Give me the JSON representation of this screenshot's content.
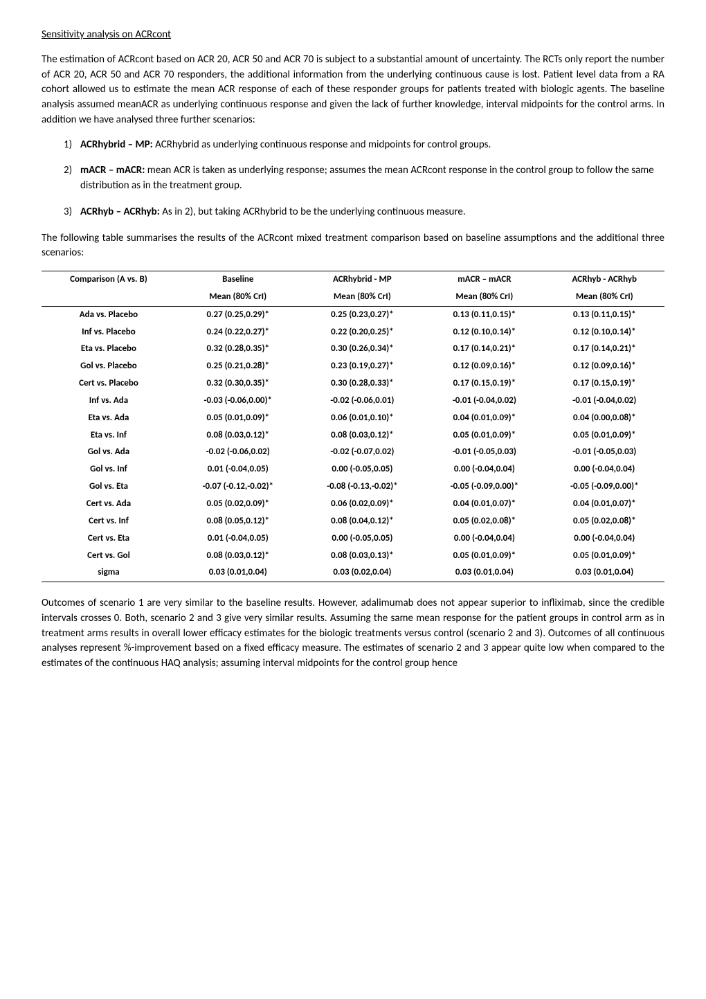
{
  "title": "Sensitivity analysis on ACRcont",
  "para1": "The estimation of ACRcont based on ACR 20, ACR 50 and ACR 70 is subject to a substantial amount of uncertainty. The RCTs only report the number of ACR 20, ACR 50 and ACR 70 responders, the additional information from the underlying continuous cause is lost. Patient level data from a RA cohort allowed us to estimate the mean ACR response of each of these responder groups for patients treated with biologic agents. The baseline analysis assumed meanACR as underlying continuous response and given the lack of further knowledge, interval midpoints for the control arms. In addition we have analysed three further scenarios:",
  "scenarios": [
    {
      "num": "1)",
      "name": "ACRhybrid – MP:",
      "desc": " ACRhybrid as underlying continuous response and midpoints for control groups."
    },
    {
      "num": "2)",
      "name": "mACR – mACR:",
      "desc": " mean ACR is taken as underlying response;  assumes the mean ACRcont response in the control group to follow the same distribution as in the treatment group."
    },
    {
      "num": "3)",
      "name": "ACRhyb – ACRhyb:",
      "desc": " As in 2), but taking ACRhybrid to be the underlying continuous measure."
    }
  ],
  "para2": "The following table summarises the results of the ACRcont mixed treatment comparison based on baseline assumptions and the additional three scenarios:",
  "table": {
    "head1": [
      "Comparison (A vs. B)",
      "Baseline",
      "ACRhybrid - MP",
      "mACR – mACR",
      "ACRhyb - ACRhyb"
    ],
    "head2": [
      "",
      "Mean (80% CrI)",
      "Mean (80% CrI)",
      "Mean (80% CrI)",
      "Mean (80% CrI)"
    ],
    "rows": [
      [
        "Ada vs. Placebo",
        "0.27 (0.25,0.29)*",
        "0.25 (0.23,0.27)*",
        "0.13 (0.11,0.15)*",
        "0.13 (0.11,0.15)*"
      ],
      [
        "Inf vs. Placebo",
        "0.24 (0.22,0.27)*",
        "0.22 (0.20,0.25)*",
        "0.12 (0.10,0.14)*",
        "0.12 (0.10,0.14)*"
      ],
      [
        "Eta vs. Placebo",
        "0.32 (0.28,0.35)*",
        "0.30 (0.26,0.34)*",
        "0.17 (0.14,0.21)*",
        "0.17 (0.14,0.21)*"
      ],
      [
        "Gol vs. Placebo",
        "0.25 (0.21,0.28)*",
        "0.23 (0.19,0.27)*",
        "0.12 (0.09,0.16)*",
        "0.12 (0.09,0.16)*"
      ],
      [
        "Cert vs. Placebo",
        "0.32 (0.30,0.35)*",
        "0.30 (0.28,0.33)*",
        "0.17 (0.15,0.19)*",
        "0.17 (0.15,0.19)*"
      ],
      [
        "Inf vs. Ada",
        "-0.03 (-0.06,0.00)*",
        "-0.02 (-0.06,0.01)",
        "-0.01 (-0.04,0.02)",
        "-0.01 (-0.04,0.02)"
      ],
      [
        "Eta vs. Ada",
        "0.05 (0.01,0.09)*",
        "0.06 (0.01,0.10)*",
        "0.04 (0.01,0.09)*",
        "0.04 (0.00,0.08)*"
      ],
      [
        "Eta vs. Inf",
        "0.08 (0.03,0.12)*",
        "0.08 (0.03,0.12)*",
        "0.05 (0.01,0.09)*",
        "0.05 (0.01,0.09)*"
      ],
      [
        "Gol vs. Ada",
        "-0.02 (-0.06,0.02)",
        "-0.02 (-0.07,0.02)",
        "-0.01 (-0.05,0.03)",
        "-0.01 (-0.05,0.03)"
      ],
      [
        "Gol vs. Inf",
        "0.01 (-0.04,0.05)",
        "0.00 (-0.05,0.05)",
        "0.00 (-0.04,0.04)",
        "0.00 (-0.04,0.04)"
      ],
      [
        "Gol vs. Eta",
        "-0.07 (-0.12,-0.02)*",
        "-0.08 (-0.13,-0.02)*",
        "-0.05 (-0.09,0.00)*",
        "-0.05 (-0.09,0.00)*"
      ],
      [
        "Cert vs. Ada",
        "0.05 (0.02,0.09)*",
        "0.06 (0.02,0.09)*",
        "0.04 (0.01,0.07)*",
        "0.04 (0.01,0.07)*"
      ],
      [
        "Cert vs. Inf",
        "0.08 (0.05,0.12)*",
        "0.08 (0.04,0.12)*",
        "0.05 (0.02,0.08)*",
        "0.05 (0.02,0.08)*"
      ],
      [
        "Cert vs. Eta",
        "0.01 (-0.04,0.05)",
        "0.00 (-0.05,0.05)",
        "0.00 (-0.04,0.04)",
        "0.00 (-0.04,0.04)"
      ],
      [
        "Cert vs. Gol",
        "0.08 (0.03,0.12)*",
        "0.08 (0.03,0.13)*",
        "0.05 (0.01,0.09)*",
        "0.05 (0.01,0.09)*"
      ],
      [
        "sigma",
        "0.03 (0.01,0.04)",
        "0.03 (0.02,0.04)",
        "0.03 (0.01,0.04)",
        "0.03 (0.01,0.04)"
      ]
    ]
  },
  "para3": "Outcomes of scenario 1 are very similar to the baseline results. However, adalimumab does not appear superior to infliximab, since the credible intervals crosses 0. Both, scenario 2 and 3 give very similar results. Assuming the same mean response for the patient groups in control arm as in treatment arms results in overall lower efficacy estimates for the biologic treatments versus control (scenario 2 and 3). Outcomes of all continuous analyses represent %-improvement based on a fixed efficacy measure. The estimates of scenario 2 and 3 appear quite low when compared to the estimates of the continuous HAQ analysis; assuming interval midpoints for the control group hence"
}
